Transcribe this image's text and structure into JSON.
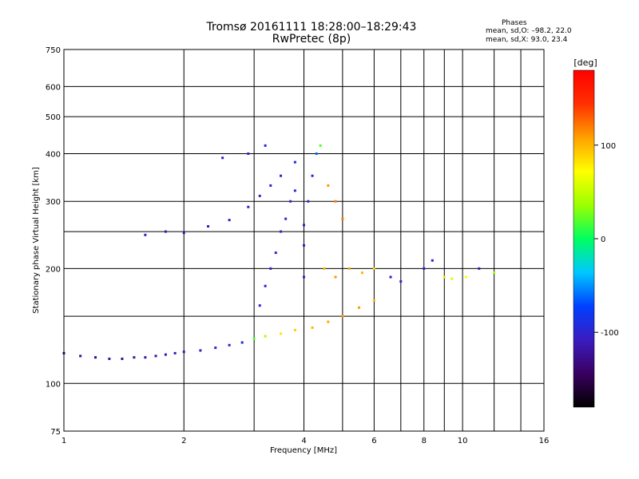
{
  "header": {
    "title": "Tromsø 20161111 18:28:00–18:29:43",
    "subtitle": "RwPretec (8p)",
    "stats_heading": "Phases",
    "stats_o": "mean, sd,O: –98.2, 22.0",
    "stats_x": "mean, sd,X:  93.0, 23.4"
  },
  "chart_data": {
    "type": "scatter",
    "title": "Tromsø 20161111 18:28:00–18:29:43",
    "subtitle": "RwPretec (8p)",
    "xlabel": "Frequency [MHz]",
    "ylabel": "Stationary phase Virtual Height [km]",
    "xscale": "log",
    "yscale": "log",
    "xlim": [
      1,
      16
    ],
    "ylim": [
      75,
      750
    ],
    "x_ticks": [
      1,
      2,
      4,
      6,
      8,
      10,
      16
    ],
    "y_ticks": [
      75,
      100,
      200,
      300,
      400,
      500,
      600,
      750
    ],
    "grid": true,
    "colorbar": {
      "label": "[deg]",
      "range": [
        -180,
        180
      ],
      "ticks": [
        -100,
        0,
        100
      ],
      "colors": [
        "#000000",
        "#3a0060",
        "#3a1cc0",
        "#0040ff",
        "#00c8ff",
        "#00ff60",
        "#9cff00",
        "#ffff00",
        "#ffa000",
        "#ff3000",
        "#ff0000"
      ]
    },
    "series": [
      {
        "description_points": [
          [
            1.0,
            120,
            -130
          ],
          [
            1.1,
            118,
            -125
          ],
          [
            1.2,
            117,
            -128
          ],
          [
            1.3,
            116,
            -120
          ],
          [
            1.4,
            116,
            -125
          ],
          [
            1.5,
            117,
            -122
          ],
          [
            1.6,
            117,
            -120
          ],
          [
            1.7,
            118,
            -118
          ],
          [
            1.8,
            119,
            -115
          ],
          [
            1.9,
            120,
            -112
          ],
          [
            2.0,
            121,
            -110
          ],
          [
            2.2,
            122,
            -108
          ],
          [
            2.4,
            124,
            -104
          ],
          [
            2.6,
            126,
            -100
          ],
          [
            2.8,
            128,
            -96
          ],
          [
            3.0,
            131,
            20
          ],
          [
            3.2,
            133,
            40
          ],
          [
            3.5,
            135,
            80
          ],
          [
            3.8,
            138,
            90
          ],
          [
            4.2,
            140,
            100
          ],
          [
            4.6,
            145,
            105
          ],
          [
            5.0,
            150,
            110
          ],
          [
            5.5,
            158,
            110
          ],
          [
            6.0,
            165,
            100
          ],
          [
            1.6,
            245,
            -110
          ],
          [
            1.8,
            250,
            -112
          ],
          [
            2.0,
            248,
            -110
          ],
          [
            2.3,
            258,
            -108
          ],
          [
            2.6,
            268,
            -104
          ],
          [
            2.9,
            290,
            -104
          ],
          [
            3.1,
            310,
            -100
          ],
          [
            3.3,
            330,
            -100
          ],
          [
            3.5,
            350,
            -100
          ],
          [
            3.8,
            380,
            -95
          ],
          [
            2.5,
            390,
            -100
          ],
          [
            2.9,
            400,
            -98
          ],
          [
            3.2,
            420,
            -96
          ],
          [
            3.1,
            160,
            -100
          ],
          [
            3.2,
            180,
            -102
          ],
          [
            3.3,
            200,
            -100
          ],
          [
            3.4,
            220,
            -98
          ],
          [
            3.5,
            250,
            -100
          ],
          [
            3.6,
            270,
            -102
          ],
          [
            3.7,
            300,
            -100
          ],
          [
            3.8,
            320,
            -98
          ],
          [
            4.0,
            190,
            -100
          ],
          [
            4.0,
            230,
            -98
          ],
          [
            4.0,
            260,
            -100
          ],
          [
            4.1,
            300,
            -96
          ],
          [
            4.2,
            350,
            -92
          ],
          [
            4.3,
            400,
            -60
          ],
          [
            4.4,
            420,
            20
          ],
          [
            4.6,
            330,
            110
          ],
          [
            4.8,
            300,
            120
          ],
          [
            5.0,
            270,
            120
          ],
          [
            4.5,
            200,
            100
          ],
          [
            4.8,
            190,
            110
          ],
          [
            5.2,
            200,
            105
          ],
          [
            5.6,
            195,
            100
          ],
          [
            6.0,
            200,
            90
          ],
          [
            6.6,
            190,
            -100
          ],
          [
            7.0,
            185,
            -100
          ],
          [
            8.0,
            200,
            -110
          ],
          [
            8.4,
            210,
            -100
          ],
          [
            9.0,
            190,
            80
          ],
          [
            9.4,
            188,
            60
          ],
          [
            10.2,
            190,
            70
          ],
          [
            11.0,
            200,
            -110
          ],
          [
            12.0,
            195,
            40
          ]
        ]
      }
    ]
  }
}
